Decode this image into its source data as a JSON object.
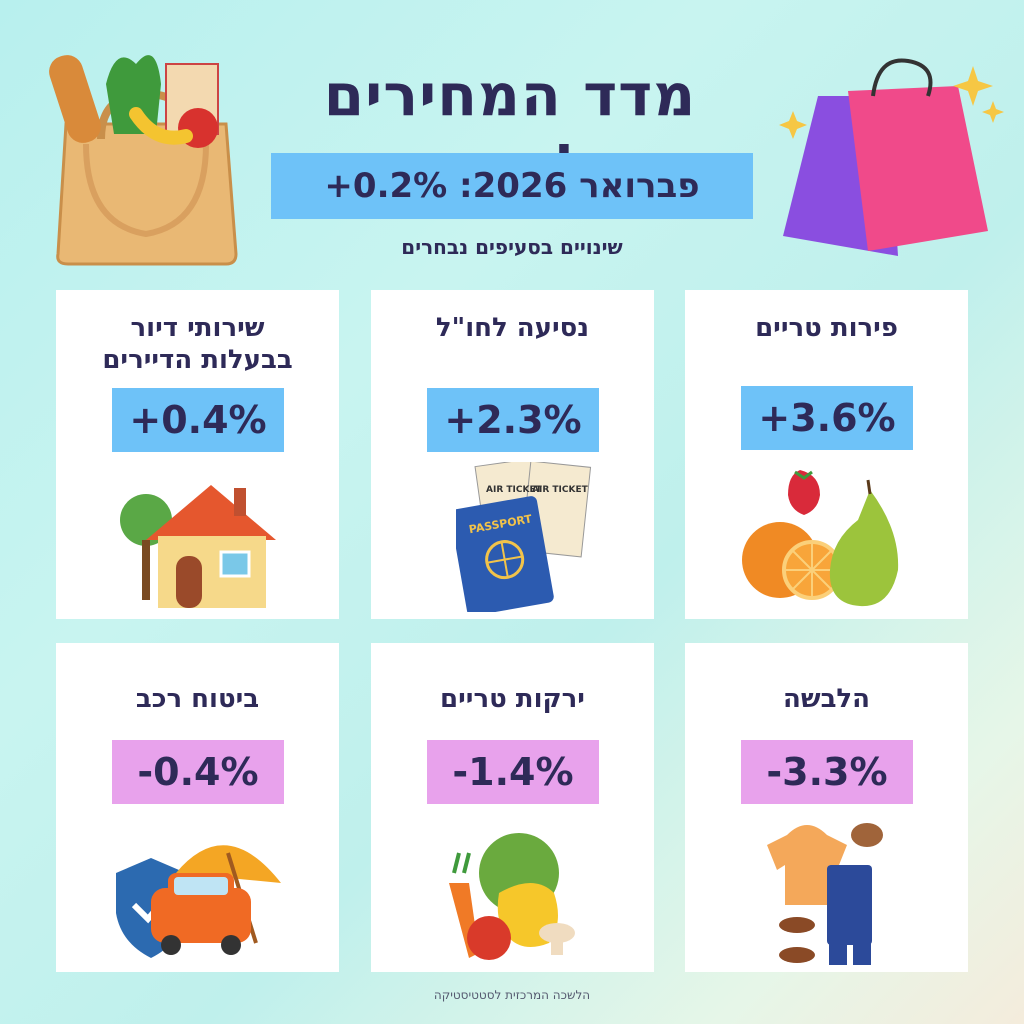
{
  "header": {
    "title": "מדד המחירים לצרכן",
    "banner": "פברואר 2026: 0.2%+",
    "subtitle": "שינויים בסעיפים נבחרים"
  },
  "colors": {
    "increase": "#6ec2f8",
    "decrease": "#e8a2ec",
    "text": "#2e2a58"
  },
  "cards": [
    {
      "title": "פירות  טריים",
      "value": "+3.6%",
      "direction": "up",
      "icon": "fruits-icon"
    },
    {
      "title": "נסיעה לחו\"ל",
      "value": "+2.3%",
      "direction": "up",
      "icon": "passport-ticket-icon",
      "ticket_text": "AIR TICKET"
    },
    {
      "title_line1": "שירותי דיור",
      "title_line2": "בבעלות הדיירים",
      "value": "+0.4%",
      "direction": "up",
      "icon": "house-icon"
    },
    {
      "title": "הלבשה",
      "value": "-3.3%",
      "direction": "down",
      "icon": "clothing-icon"
    },
    {
      "title": "ירקות טריים",
      "value": "-1.4%",
      "direction": "down",
      "icon": "vegetables-icon"
    },
    {
      "title": "ביטוח רכב",
      "value": "-0.4%",
      "direction": "down",
      "icon": "car-insurance-icon"
    }
  ],
  "passport_label": "PASSPORT",
  "footer": "הלשכה המרכזית לסטטיסטיקה"
}
